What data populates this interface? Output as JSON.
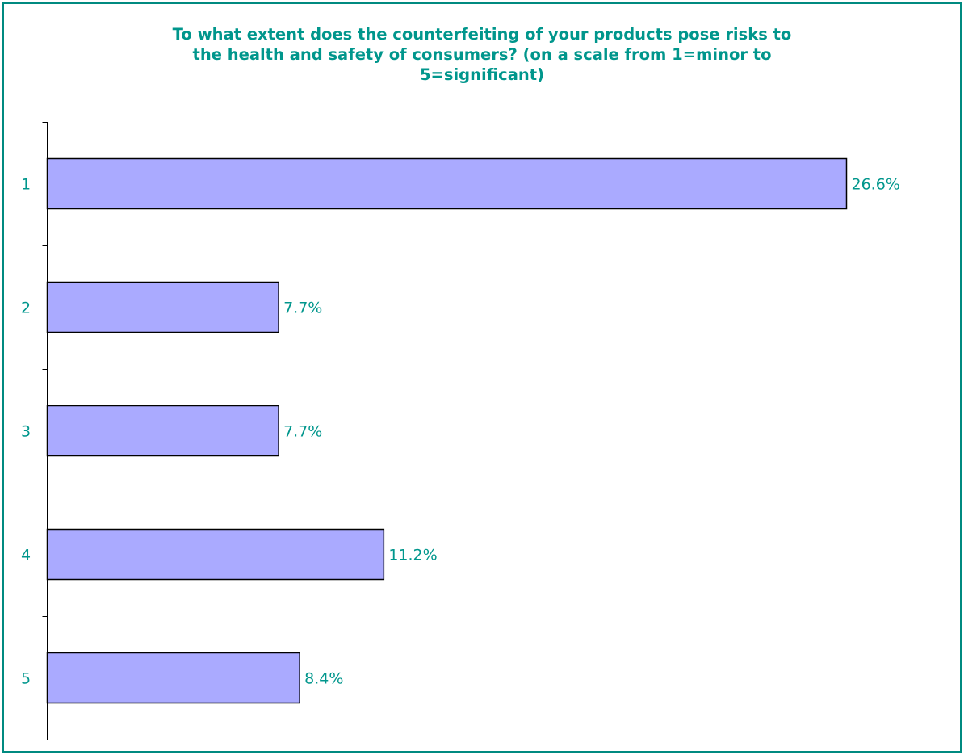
{
  "chart_data": {
    "type": "bar",
    "orientation": "horizontal",
    "title_lines": [
      "To what extent does the counterfeiting of your products pose risks to",
      "the health and safety of consumers? (on a scale from 1=minor to",
      "5=significant)"
    ],
    "categories": [
      "1",
      "2",
      "3",
      "4",
      "5"
    ],
    "values": [
      26.6,
      7.7,
      7.7,
      11.2,
      8.4
    ],
    "value_labels": [
      "26.6%",
      "7.7%",
      "7.7%",
      "11.2%",
      "8.4%"
    ],
    "xlim": [
      0,
      26.6
    ],
    "grid": false,
    "legend": "none",
    "colors": {
      "bar_fill": "#aaaaff",
      "bar_stroke": "#000000",
      "text": "#00968c",
      "frame": "#008a80",
      "axis": "#000000"
    }
  }
}
